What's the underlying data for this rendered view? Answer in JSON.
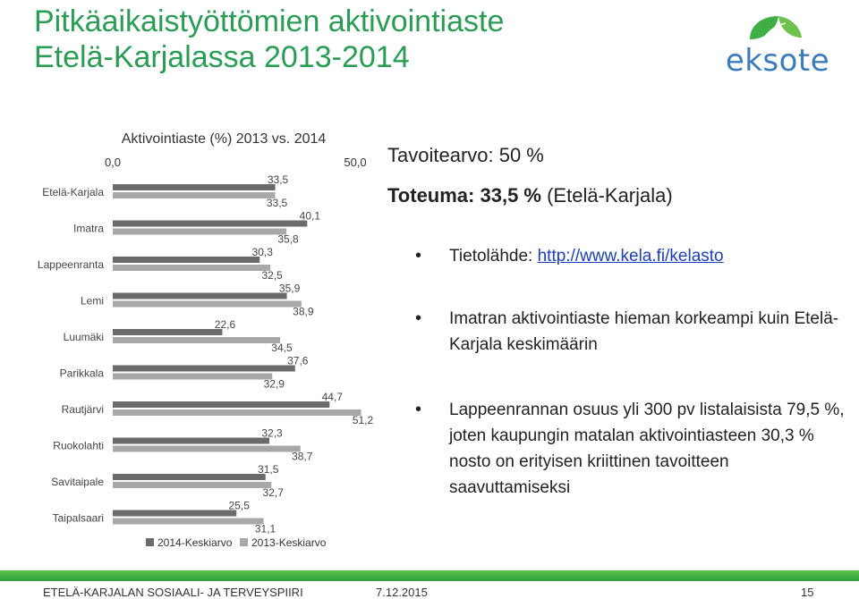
{
  "header": {
    "title_line1": "Pitkäaikaistyöttömien aktivointiaste",
    "title_line2": "Etelä-Karjalassa 2013-2014",
    "logo_text": "eksote",
    "logo_icon": "eksote-leaf-logo",
    "title_color": "#2a9d55"
  },
  "chart_data": {
    "type": "bar",
    "orientation": "horizontal",
    "title": "Aktivointiaste (%) 2013 vs. 2014",
    "axis_ticks": [
      "0,0",
      "50,0"
    ],
    "xlim": [
      0,
      50
    ],
    "categories": [
      "Etelä-Karjala",
      "Imatra",
      "Lappeenranta",
      "Lemi",
      "Luumäki",
      "Parikkala",
      "Rautjärvi",
      "Ruokolahti",
      "Savitaipale",
      "Taipalsaari"
    ],
    "series": [
      {
        "name": "2014-Keskiarvo",
        "color": "#6b6b6b",
        "values": [
          33.5,
          40.1,
          30.3,
          35.9,
          22.6,
          37.6,
          44.7,
          32.3,
          31.5,
          25.5
        ],
        "labels": [
          "33,5",
          "40,1",
          "30,3",
          "35,9",
          "22,6",
          "37,6",
          "44,7",
          "32,3",
          "31,5",
          "25,5"
        ]
      },
      {
        "name": "2013-Keskiarvo",
        "color": "#a8a8a8",
        "values": [
          33.5,
          35.8,
          32.5,
          38.9,
          34.5,
          32.9,
          51.2,
          38.7,
          32.7,
          31.1
        ],
        "labels": [
          "33,5",
          "35,8",
          "32,5",
          "38,9",
          "34,5",
          "32,9",
          "51,2",
          "38,7",
          "32,7",
          "31,1"
        ]
      }
    ],
    "legend_position": "bottom",
    "grid": false
  },
  "summary": {
    "target": "Tavoitearvo: 50 %",
    "actual_bold": "Toteuma: 33,5 %",
    "actual_rest": " (Etelä-Karjala)"
  },
  "bullets": {
    "source_prefix": "Tietolähde: ",
    "source_link": "http://www.kela.fi/kelasto",
    "b2": "Imatran aktivointiaste hieman korkeampi kuin Etelä-Karjala keskimäärin",
    "b3": "Lappeenrannan osuus yli 300 pv listalaisista 79,5 %, joten kaupungin matalan aktivointiasteen 30,3 % nosto on erityisen kriittinen tavoitteen saavuttamiseksi"
  },
  "footer": {
    "org": "ETELÄ-KARJALAN SOSIAALI- JA TERVEYSPIIRI",
    "date": "7.12.2015",
    "page": "15",
    "bar_color": "#3fae45"
  }
}
